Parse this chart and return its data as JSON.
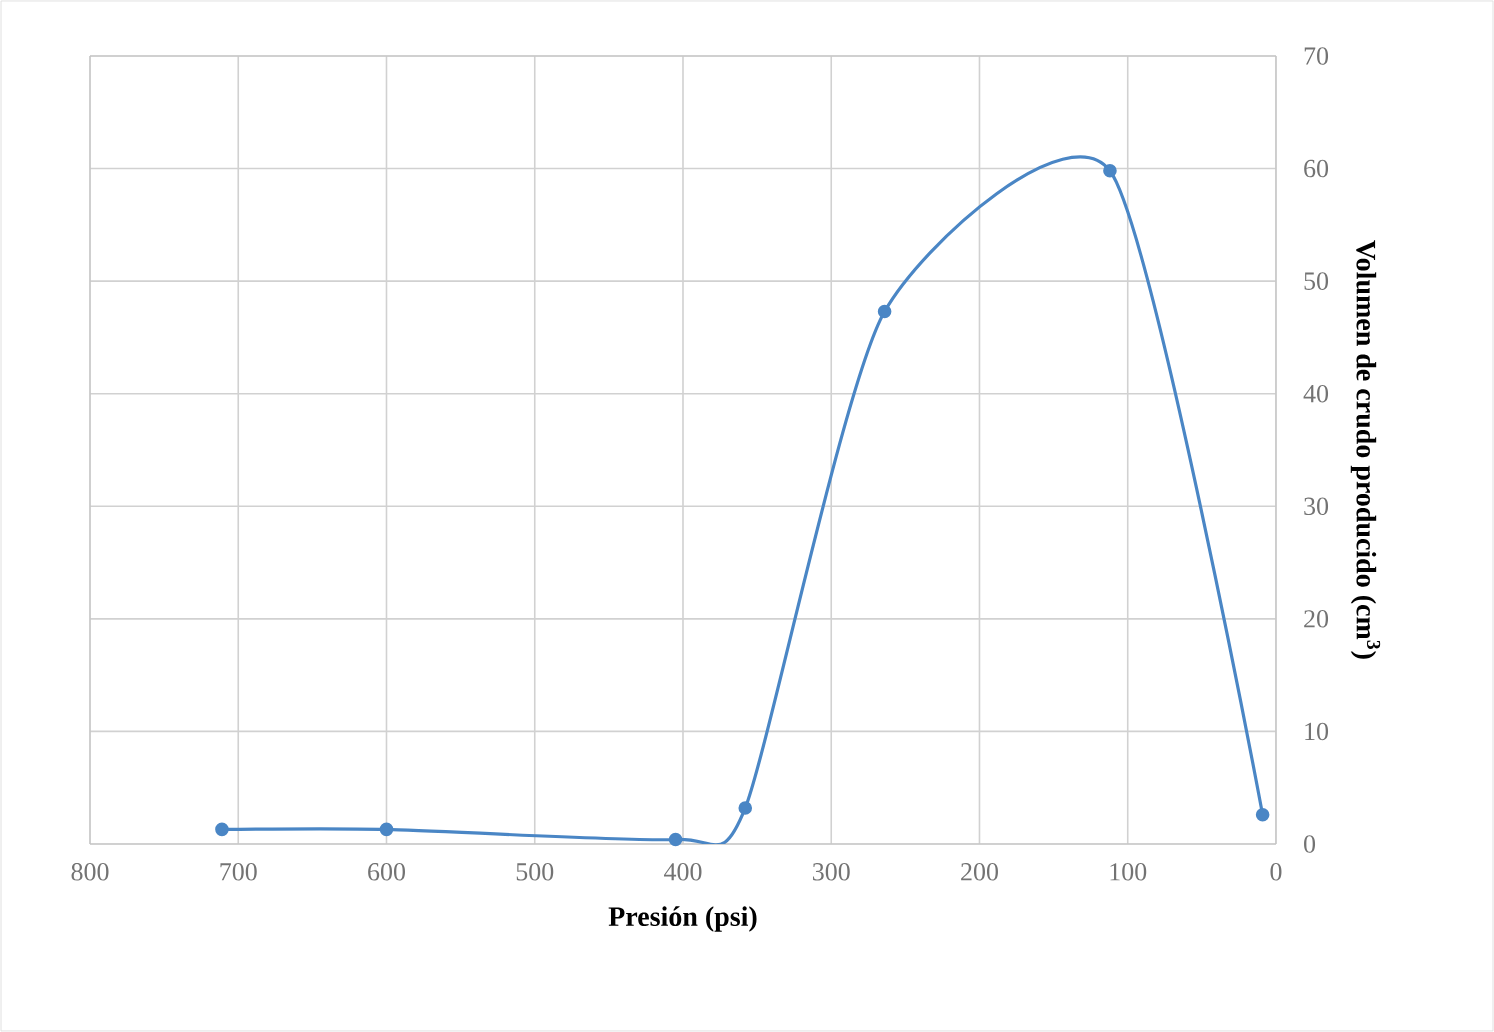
{
  "chart_data": {
    "type": "line",
    "xlabel": "**Presión (psi)**",
    "ylabel": "**Volumen de crudo producido (cm$^{3}$)**",
    "x": [
      711,
      600,
      405,
      358,
      264,
      112,
      9
    ],
    "series": [
      {
        "color": "#4a86c5",
        "values": [
          1.3,
          1.3,
          0.4,
          3.2,
          47.3,
          59.8,
          2.6
        ]
      }
    ],
    "xlim": [
      800,
      0
    ],
    "ylim": [
      0,
      70
    ],
    "xticks": [
      800,
      700,
      600,
      500,
      400,
      300,
      200,
      100,
      0
    ],
    "yticks": [
      0,
      10,
      20,
      30,
      40,
      50,
      60,
      70
    ],
    "grid": true,
    "marker": "circle",
    "line_style": "solid"
  }
}
